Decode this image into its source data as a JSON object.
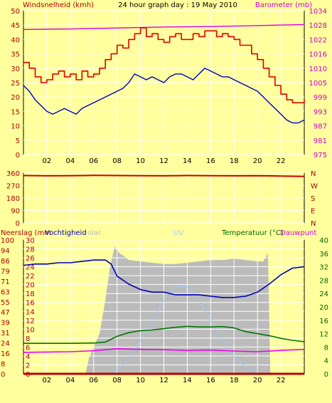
{
  "colors": {
    "background": "#FFFF9E",
    "plot_area": "#FFFF9E",
    "grid": "#FFFFFF",
    "axis_text_left": "#B00000",
    "axis_text_right_top": "#CC00CC",
    "axis_text_right_bottom": "#006600",
    "wind_gust": "#DD0000",
    "wind_avg": "#0000BB",
    "barometer": "#DD00DD",
    "wind_dir": "#CC0000",
    "humidity": "#0000BB",
    "temperature": "#007700",
    "dewpoint": "#EE00EE",
    "rain": "#BB0000",
    "solar": "#BBBBBB",
    "uv": "#99CCFF"
  },
  "chart_data": [
    {
      "type": "line",
      "title": "24 hour graph day : 19 May 2010",
      "ylabel_left": "Windsnelheid (kmh)",
      "ylabel_right": "Barometer (mb)",
      "x_ticks": [
        "02",
        "04",
        "06",
        "08",
        "10",
        "12",
        "14",
        "16",
        "18",
        "20",
        "22"
      ],
      "x_range_hours": [
        0,
        24
      ],
      "y_left_ticks": [
        "0",
        "5",
        "10",
        "15",
        "20",
        "25",
        "30",
        "35",
        "40",
        "45",
        "50"
      ],
      "y_left_range": [
        0,
        50
      ],
      "y_right_ticks": [
        "975",
        "981",
        "987",
        "993",
        "999",
        "1005",
        "1010",
        "1016",
        "1022",
        "1028",
        "1034"
      ],
      "y_right_range": [
        975,
        1034
      ],
      "grid": true,
      "series": [
        {
          "key": "wind_gust",
          "axis": "left",
          "x": [
            0,
            0.5,
            1,
            1.5,
            2,
            2.5,
            3,
            3.5,
            4,
            4.5,
            5,
            5.5,
            6,
            6.5,
            7,
            7.5,
            8,
            8.5,
            9,
            9.5,
            10,
            10.5,
            11,
            11.5,
            12,
            12.5,
            13,
            13.5,
            14,
            14.5,
            15,
            15.5,
            16,
            16.5,
            17,
            17.5,
            18,
            18.5,
            19,
            19.5,
            20,
            20.5,
            21,
            21.5,
            22,
            22.5,
            23,
            23.5,
            24
          ],
          "values": [
            32,
            30,
            27,
            25,
            26,
            28,
            29,
            27,
            28,
            26,
            29,
            27,
            28,
            30,
            33,
            35,
            38,
            37,
            40,
            42,
            44,
            41,
            42,
            40,
            39,
            41,
            42,
            40,
            40,
            42,
            41,
            43,
            43,
            41,
            42,
            41,
            40,
            38,
            38,
            35,
            33,
            30,
            27,
            24,
            21,
            19,
            18,
            18,
            19
          ]
        },
        {
          "key": "wind_avg",
          "axis": "left",
          "x": [
            0,
            0.5,
            1,
            1.5,
            2,
            2.5,
            3,
            3.5,
            4,
            4.5,
            5,
            5.5,
            6,
            6.5,
            7,
            7.5,
            8,
            8.5,
            9,
            9.5,
            10,
            10.5,
            11,
            11.5,
            12,
            12.5,
            13,
            13.5,
            14,
            14.5,
            15,
            15.5,
            16,
            16.5,
            17,
            17.5,
            18,
            18.5,
            19,
            19.5,
            20,
            20.5,
            21,
            21.5,
            22,
            22.5,
            23,
            23.5,
            24
          ],
          "values": [
            24,
            22,
            19,
            17,
            15,
            14,
            15,
            16,
            15,
            14,
            16,
            17,
            18,
            19,
            20,
            21,
            22,
            23,
            25,
            28,
            27,
            26,
            27,
            26,
            25,
            27,
            28,
            28,
            27,
            26,
            28,
            30,
            29,
            28,
            27,
            27,
            26,
            25,
            24,
            23,
            22,
            20,
            18,
            16,
            14,
            12,
            11,
            11,
            12
          ]
        },
        {
          "key": "barometer",
          "axis": "right",
          "x": [
            0,
            2,
            4,
            6,
            8,
            10,
            12,
            14,
            16,
            18,
            20,
            22,
            24
          ],
          "values": [
            1026.3,
            1026.4,
            1026.5,
            1026.7,
            1026.9,
            1027.1,
            1027.3,
            1027.4,
            1027.5,
            1027.7,
            1027.9,
            1028.1,
            1028.3
          ]
        }
      ]
    },
    {
      "type": "line",
      "y_left_ticks": [
        "0",
        "90",
        "180",
        "270",
        "360"
      ],
      "y_left_range": [
        0,
        360
      ],
      "y_right_ticks": [
        "N",
        "E",
        "S",
        "W",
        "N"
      ],
      "grid": true,
      "series": [
        {
          "key": "wind_dir",
          "x": [
            0,
            2,
            4,
            6,
            8,
            10,
            12,
            14,
            16,
            18,
            20,
            22,
            24
          ],
          "values": [
            342,
            340,
            341,
            343,
            342,
            341,
            340,
            342,
            341,
            340,
            341,
            338,
            336
          ]
        }
      ]
    },
    {
      "type": "line",
      "ylabel_left_1": "Neerslag (mm",
      "ylabel_left_2": "Vochtigheid",
      "ylabel_solar": "olar",
      "ylabel_uv": "UV",
      "ylabel_right_1": "Temperatuur (°C)",
      "ylabel_right_2": "Dauwpunt",
      "x_ticks": [
        "02",
        "04",
        "06",
        "08",
        "10",
        "12",
        "14",
        "16",
        "18",
        "20",
        "22"
      ],
      "y_hum_ticks": [
        "0",
        "8",
        "16",
        "24",
        "31",
        "39",
        "47",
        "55",
        "63",
        "71",
        "79",
        "86",
        "94",
        "100"
      ],
      "y_hum_range": [
        0,
        100
      ],
      "y_rain_ticks": [
        "0",
        "2",
        "4",
        "6",
        "8",
        "10",
        "12",
        "14",
        "16",
        "18",
        "20",
        "22",
        "24",
        "26",
        "28",
        "30"
      ],
      "y_rain_range": [
        0,
        30
      ],
      "y_temp_ticks": [
        "0",
        "4",
        "8",
        "12",
        "16",
        "20",
        "24",
        "28",
        "32",
        "36",
        "40"
      ],
      "y_temp_range": [
        0,
        40
      ],
      "grid": true,
      "series": [
        {
          "key": "solar",
          "axis": "hum",
          "x": [
            5.3,
            5.6,
            6,
            6.5,
            7,
            7.4,
            7.8,
            8.2,
            8.6,
            9,
            10,
            11,
            12,
            13,
            14,
            15,
            16,
            17,
            18,
            19,
            20,
            20.5,
            20.9,
            21.1
          ],
          "values": [
            0,
            12,
            20,
            30,
            55,
            80,
            95,
            90,
            88,
            85,
            84,
            83,
            82,
            82,
            83,
            84,
            85,
            85,
            86,
            85,
            84,
            84,
            90,
            0
          ]
        },
        {
          "key": "uv",
          "axis": "temp",
          "x": [
            7.5,
            9,
            10,
            11,
            12,
            13,
            14,
            15,
            16,
            17,
            18,
            19,
            20
          ],
          "values": [
            0,
            4,
            10,
            16,
            22,
            26,
            26,
            22,
            16,
            10,
            5,
            2,
            0
          ]
        },
        {
          "key": "humidity",
          "axis": "hum",
          "x": [
            0,
            1,
            2,
            3,
            4,
            5,
            6,
            7,
            7.5,
            8,
            9,
            10,
            11,
            12,
            13,
            14,
            15,
            16,
            17,
            18,
            19,
            20,
            21,
            22,
            23,
            24
          ],
          "values": [
            81,
            82,
            82,
            83,
            83,
            84,
            85,
            85,
            82,
            73,
            67,
            63,
            61,
            61,
            59,
            59,
            59,
            58,
            57,
            57,
            58,
            61,
            67,
            74,
            79,
            80
          ]
        },
        {
          "key": "temperature",
          "axis": "temp",
          "x": [
            0,
            2,
            4,
            6,
            7,
            8,
            9,
            10,
            11,
            12,
            13,
            14,
            15,
            16,
            17,
            18,
            19,
            20,
            21,
            22,
            23,
            24
          ],
          "values": [
            9.1,
            9.1,
            9.1,
            9.2,
            9.5,
            11.2,
            12.3,
            12.9,
            13.1,
            13.5,
            13.9,
            14.2,
            14.0,
            14.0,
            14.1,
            13.7,
            12.6,
            12.0,
            11.4,
            10.6,
            10.0,
            9.6
          ]
        },
        {
          "key": "dewpoint",
          "axis": "temp",
          "x": [
            0,
            2,
            4,
            6,
            8,
            10,
            12,
            14,
            16,
            18,
            20,
            22,
            24
          ],
          "values": [
            6.4,
            6.5,
            6.6,
            6.9,
            7.5,
            7.3,
            7.2,
            7.0,
            7.1,
            6.8,
            6.6,
            7.0,
            7.3
          ]
        },
        {
          "key": "rain",
          "axis": "rain",
          "x": [
            0,
            24
          ],
          "values": [
            0,
            0
          ]
        }
      ]
    }
  ]
}
